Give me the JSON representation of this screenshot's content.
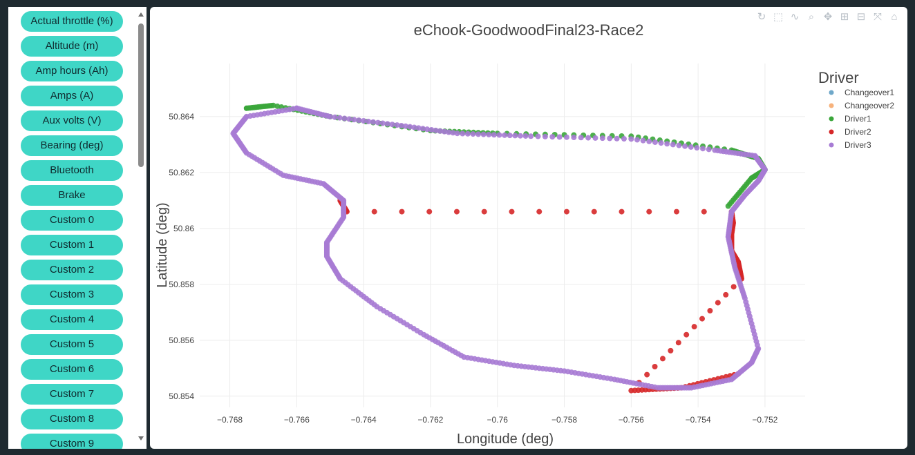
{
  "sidebar": {
    "buttons": [
      "Actual throttle (%)",
      "Altitude (m)",
      "Amp hours (Ah)",
      "Amps (A)",
      "Aux volts (V)",
      "Bearing (deg)",
      "Bluetooth",
      "Brake",
      "Custom 0",
      "Custom 1",
      "Custom 2",
      "Custom 3",
      "Custom 4",
      "Custom 5",
      "Custom 6",
      "Custom 7",
      "Custom 8",
      "Custom 9"
    ]
  },
  "modebar": {
    "icons": [
      "reset-icon",
      "box-select-icon",
      "lasso-icon",
      "zoom-icon",
      "pan-icon",
      "zoom-in-icon",
      "zoom-out-icon",
      "autoscale-icon",
      "home-icon"
    ]
  },
  "chart_data": {
    "type": "scatter",
    "title": "eChook-GoodwoodFinal23-Race2",
    "xlabel": "Longitude (deg)",
    "ylabel": "Latitude (deg)",
    "xlim": [
      -0.7689,
      -0.7508
    ],
    "ylim": [
      50.8536,
      50.8659
    ],
    "xticks": [
      -0.768,
      -0.766,
      -0.764,
      -0.762,
      -0.76,
      -0.758,
      -0.756,
      -0.754,
      -0.752
    ],
    "xtick_labels": [
      "−0.768",
      "−0.766",
      "−0.764",
      "−0.762",
      "−0.76",
      "−0.758",
      "−0.756",
      "−0.754",
      "−0.752"
    ],
    "yticks": [
      50.854,
      50.856,
      50.858,
      50.86,
      50.862,
      50.864
    ],
    "ytick_labels": [
      "50.854",
      "50.856",
      "50.858",
      "50.86",
      "50.862",
      "50.864"
    ],
    "grid": true,
    "legend": {
      "title": "Driver",
      "placement": "top-right"
    },
    "series": [
      {
        "name": "Changeover1",
        "color": "#6fa8c9",
        "points": []
      },
      {
        "name": "Changeover2",
        "color": "#f7b27c",
        "points": []
      },
      {
        "name": "Driver1",
        "color": "#3aa63a",
        "points": [
          [
            -0.7531,
            50.8608
          ],
          [
            -0.7524,
            50.8618
          ],
          [
            -0.752,
            50.8621
          ],
          [
            -0.7522,
            50.8625
          ],
          [
            -0.753,
            50.8628
          ],
          [
            -0.756,
            50.8633
          ],
          [
            -0.76,
            50.8634
          ],
          [
            -0.762,
            50.8635
          ],
          [
            -0.765,
            50.864
          ],
          [
            -0.7667,
            50.8644
          ],
          [
            -0.7675,
            50.8643
          ]
        ]
      },
      {
        "name": "Driver2",
        "color": "#d62728",
        "points": [
          [
            -0.7647,
            50.861
          ],
          [
            -0.7645,
            50.8606
          ],
          [
            -0.753,
            50.8606
          ],
          [
            -0.75295,
            50.8602
          ],
          [
            -0.753,
            50.8598
          ],
          [
            -0.753,
            50.8592
          ],
          [
            -0.7528,
            50.8588
          ],
          [
            -0.7527,
            50.8582
          ],
          [
            -0.756,
            50.8542
          ],
          [
            -0.7545,
            50.8543
          ],
          [
            -0.7528,
            50.8548
          ]
        ]
      },
      {
        "name": "Driver3",
        "color": "#a77bd4",
        "points": [
          [
            -0.766,
            50.8643
          ],
          [
            -0.7675,
            50.864
          ],
          [
            -0.7679,
            50.8634
          ],
          [
            -0.7675,
            50.8627
          ],
          [
            -0.7664,
            50.8619
          ],
          [
            -0.7652,
            50.8616
          ],
          [
            -0.7646,
            50.861
          ],
          [
            -0.7646,
            50.8604
          ],
          [
            -0.7651,
            50.8595
          ],
          [
            -0.7651,
            50.859
          ],
          [
            -0.7647,
            50.8582
          ],
          [
            -0.7636,
            50.8572
          ],
          [
            -0.7622,
            50.8562
          ],
          [
            -0.761,
            50.8554
          ],
          [
            -0.7595,
            50.8551
          ],
          [
            -0.758,
            50.8549
          ],
          [
            -0.7565,
            50.8546
          ],
          [
            -0.7552,
            50.8543
          ],
          [
            -0.7542,
            50.8543
          ],
          [
            -0.753,
            50.8546
          ],
          [
            -0.7524,
            50.8552
          ],
          [
            -0.7522,
            50.8557
          ],
          [
            -0.7526,
            50.8575
          ],
          [
            -0.7529,
            50.8586
          ],
          [
            -0.7531,
            50.8597
          ],
          [
            -0.753,
            50.8606
          ],
          [
            -0.7526,
            50.8612
          ],
          [
            -0.7522,
            50.8617
          ],
          [
            -0.752,
            50.8621
          ],
          [
            -0.7523,
            50.8626
          ],
          [
            -0.7535,
            50.8628
          ],
          [
            -0.756,
            50.8632
          ],
          [
            -0.759,
            50.8633
          ],
          [
            -0.7612,
            50.8634
          ],
          [
            -0.763,
            50.8637
          ],
          [
            -0.765,
            50.864
          ],
          [
            -0.766,
            50.8643
          ]
        ]
      }
    ]
  }
}
